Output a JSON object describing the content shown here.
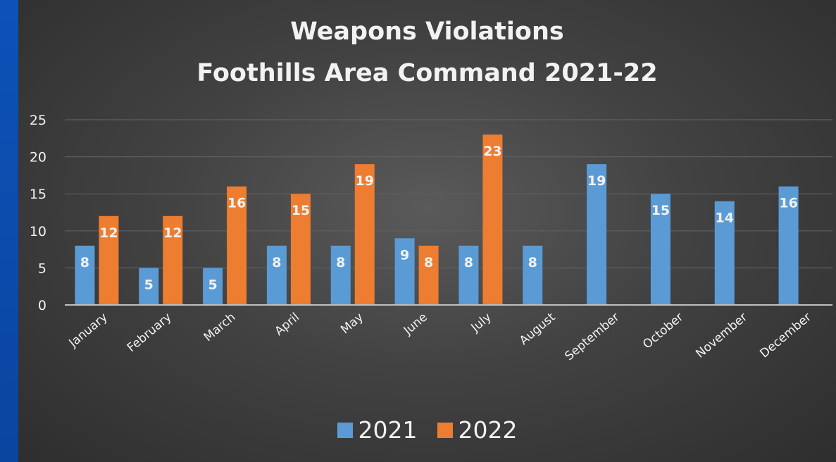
{
  "colors": {
    "series_2021": "#5b9bd5",
    "series_2022": "#ed7d31",
    "gridline": "#5f5f5f",
    "axis": "#bfbfbf",
    "text": "#f2f2f2"
  },
  "chart_data": {
    "type": "bar",
    "title": "Weapons Violations",
    "subtitle": "Foothills Area Command 2021-22",
    "categories": [
      "January",
      "February",
      "March",
      "April",
      "May",
      "June",
      "July",
      "August",
      "September",
      "October",
      "November",
      "December"
    ],
    "series": [
      {
        "name": "2021",
        "values": [
          8,
          5,
          5,
          8,
          8,
          9,
          8,
          8,
          19,
          15,
          14,
          16
        ]
      },
      {
        "name": "2022",
        "values": [
          12,
          12,
          16,
          15,
          19,
          8,
          23,
          null,
          null,
          null,
          null,
          null
        ]
      }
    ],
    "ylim": [
      0,
      25
    ],
    "yticks": [
      "0",
      "5",
      "10",
      "15",
      "20",
      "25"
    ],
    "grid": true,
    "legend_position": "bottom",
    "data_labels": true
  }
}
